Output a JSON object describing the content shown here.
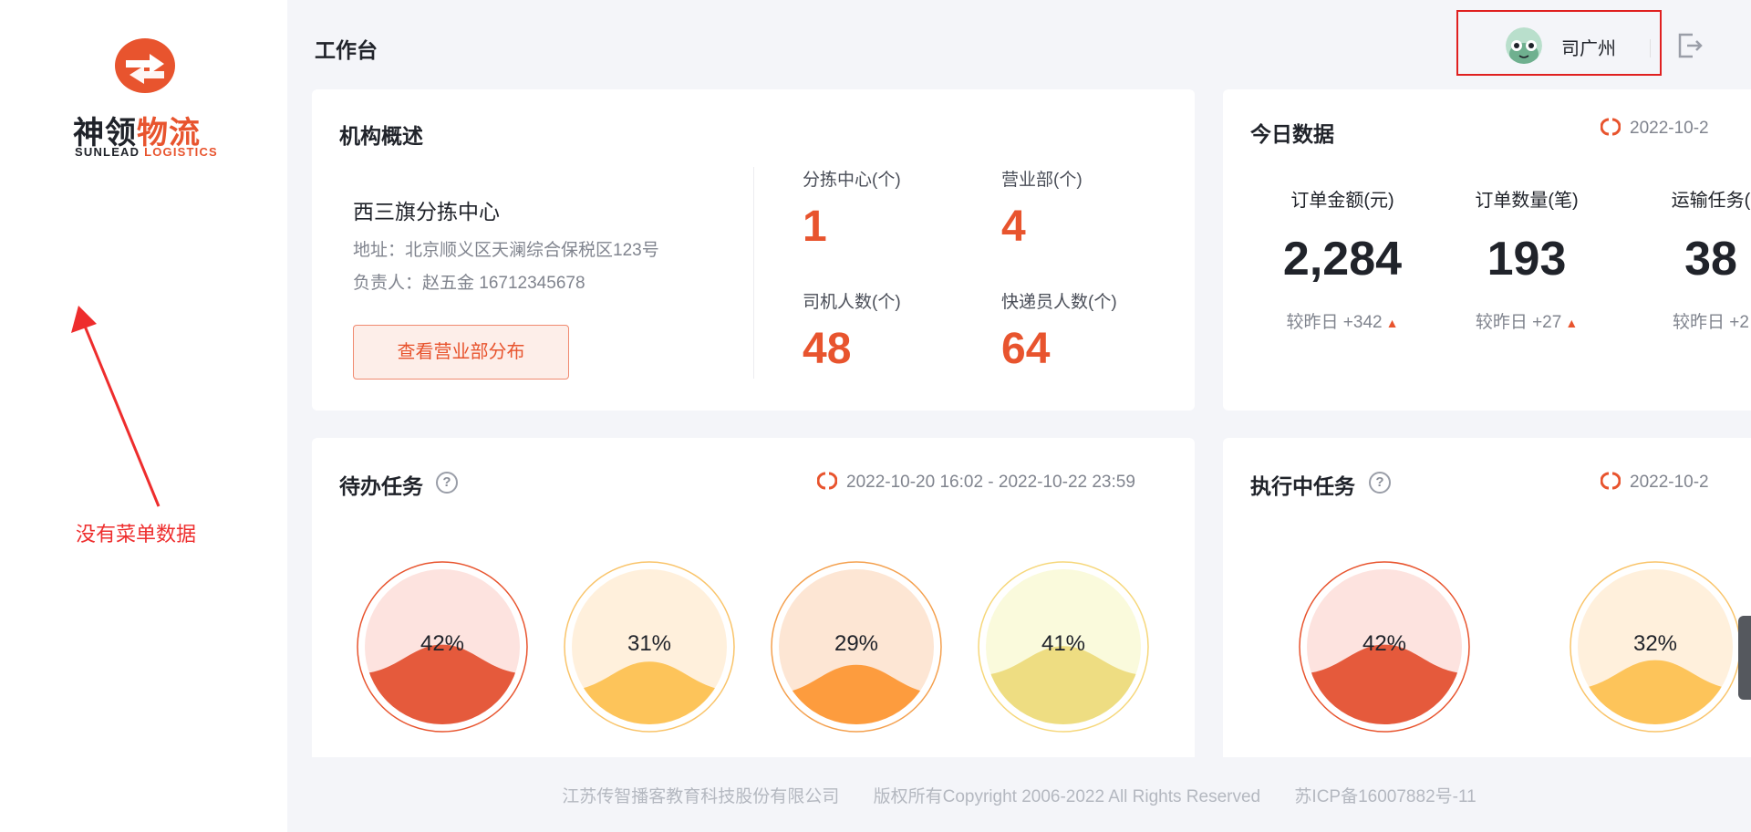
{
  "brand": {
    "name_part1": "神领",
    "name_part2": "物流",
    "en_part1": "SUNLEAD",
    "en_part2": "LOGISTICS",
    "accent_color": "#e8542e"
  },
  "annotation": {
    "text": "没有菜单数据",
    "color": "#ee2d2d"
  },
  "header": {
    "title": "工作台",
    "user_name": "司广州",
    "logout_icon": "logout-icon"
  },
  "org": {
    "title": "机构概述",
    "name": "西三旗分拣中心",
    "address": "地址：北京顺义区天澜综合保税区123号",
    "manager": "负责人：赵五金 16712345678",
    "button": "查看营业部分布",
    "stats": [
      {
        "label": "分拣中心(个)",
        "value": "1"
      },
      {
        "label": "营业部(个)",
        "value": "4"
      },
      {
        "label": "司机人数(个)",
        "value": "48"
      },
      {
        "label": "快递员人数(个)",
        "value": "64"
      }
    ]
  },
  "today": {
    "title": "今日数据",
    "refresh_text": "2022-10-2",
    "cols": [
      {
        "label": "订单金额(元)",
        "value": "2,284",
        "compare": "较昨日 +342"
      },
      {
        "label": "订单数量(笔)",
        "value": "193",
        "compare": "较昨日 +27"
      },
      {
        "label": "运输任务(",
        "value": "38",
        "compare": "较昨日 +2"
      }
    ]
  },
  "pending": {
    "title": "待办任务",
    "refresh_text": "2022-10-20 16:02 - 2022-10-22 23:59",
    "gauges": [
      {
        "percent": "42%",
        "level": 0.42,
        "ring": "#e8542e",
        "bg": "#fde3df",
        "wave": "#e55a3c"
      },
      {
        "percent": "31%",
        "level": 0.31,
        "ring": "#f9c46a",
        "bg": "#fff0dc",
        "wave": "#fdc45a"
      },
      {
        "percent": "29%",
        "level": 0.29,
        "ring": "#f4a04e",
        "bg": "#fde6d4",
        "wave": "#fd9c3e"
      },
      {
        "percent": "41%",
        "level": 0.41,
        "ring": "#f6d77a",
        "bg": "#fafadc",
        "wave": "#eedd82"
      }
    ]
  },
  "executing": {
    "title": "执行中任务",
    "refresh_text": "2022-10-2",
    "gauges": [
      {
        "percent": "42%",
        "level": 0.42,
        "ring": "#e8542e",
        "bg": "#fde3df",
        "wave": "#e55a3c"
      },
      {
        "percent": "32%",
        "level": 0.32,
        "ring": "#f9c46a",
        "bg": "#fff0dc",
        "wave": "#fdc45a"
      }
    ]
  },
  "footer": {
    "company": "江苏传智播客教育科技股份有限公司",
    "copyright": "版权所有Copyright 2006-2022 All Rights Reserved",
    "icp": "苏ICP备16007882号-11"
  }
}
